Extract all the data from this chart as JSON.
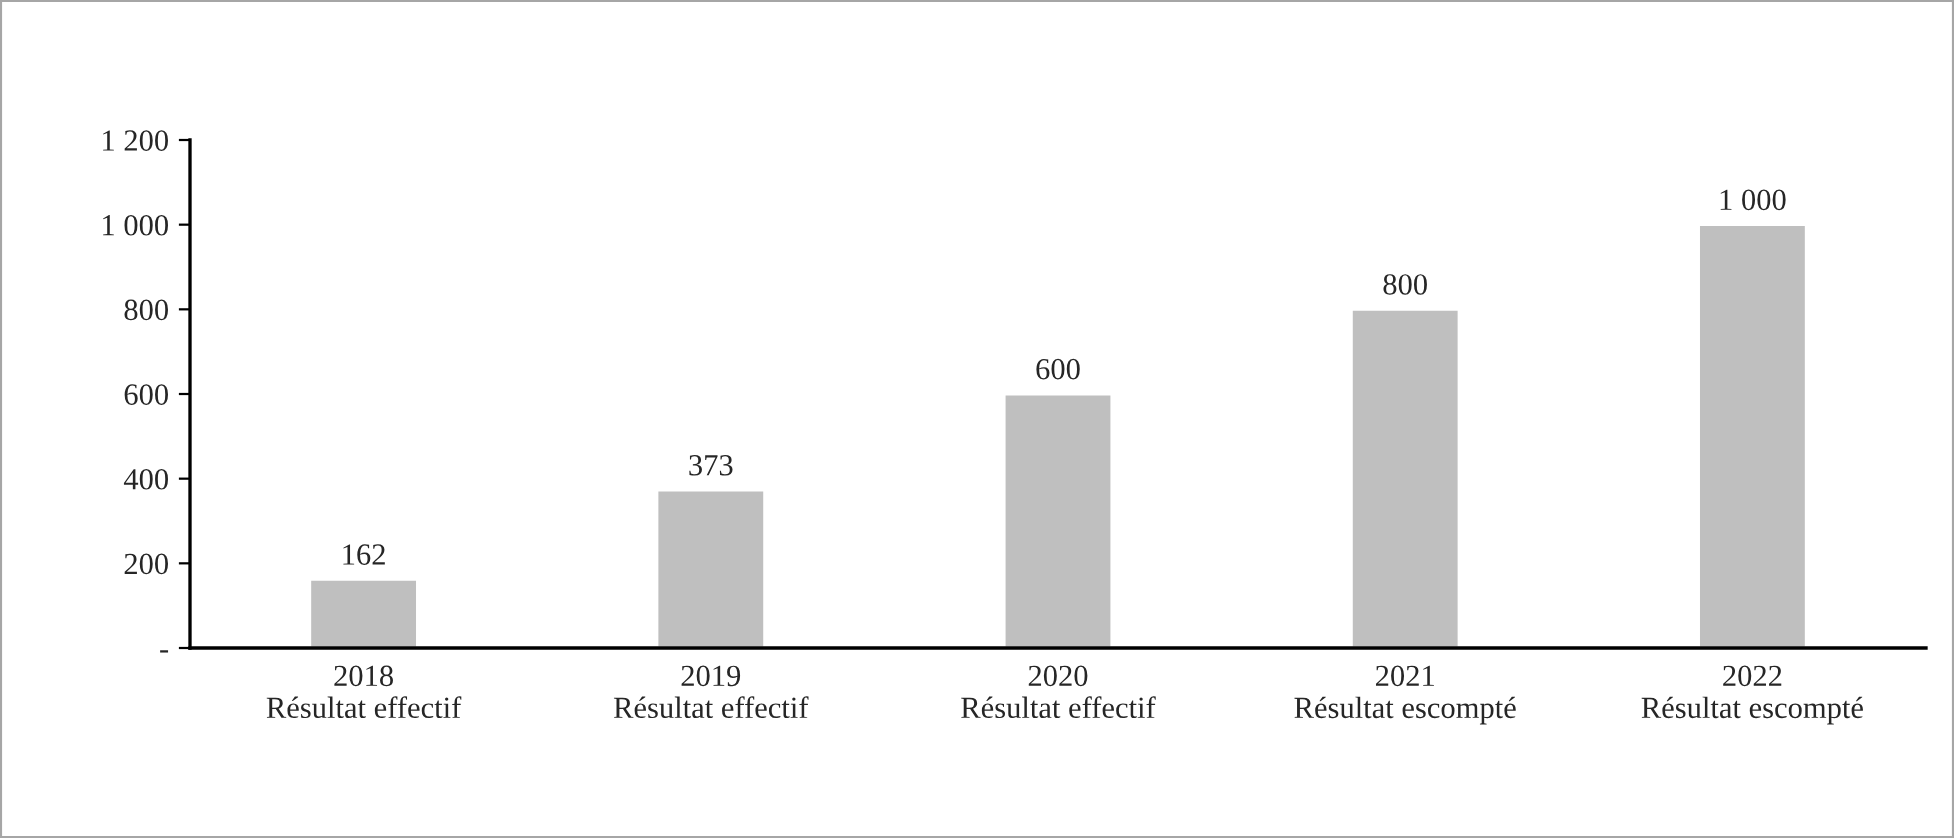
{
  "chart_data": {
    "type": "bar",
    "categories": [
      "2018\nRésultat effectif",
      "2019\nRésultat effectif",
      "2020\nRésultat effectif",
      "2021\nRésultat escompté",
      "2022\nRésultat escompté"
    ],
    "values": [
      162,
      373,
      600,
      800,
      1000
    ],
    "value_labels": [
      "162",
      "373",
      "600",
      "800",
      "1 000"
    ],
    "color": "#bfbfbf",
    "ylim": [
      0,
      1200
    ],
    "yticks": [
      {
        "value": 0,
        "label": "-"
      },
      200,
      400,
      600,
      800,
      {
        "value": 1000,
        "label": "1 000"
      },
      {
        "value": 1200,
        "label": "1 200"
      }
    ],
    "grid": false
  }
}
